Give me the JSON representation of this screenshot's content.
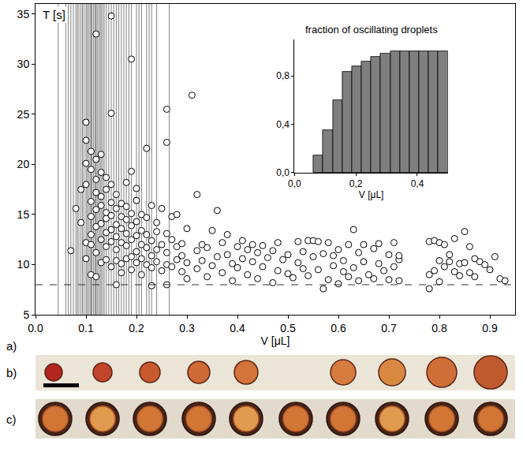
{
  "chart_data": [
    {
      "type": "scatter",
      "xlabel": "V [μL]",
      "ylabel": "T [s]",
      "x": [
        0.07,
        0.08,
        0.09,
        0.09,
        0.1,
        0.1,
        0.1,
        0.1,
        0.1,
        0.1,
        0.11,
        0.11,
        0.11,
        0.11,
        0.11,
        0.11,
        0.11,
        0.12,
        0.12,
        0.12,
        0.12,
        0.12,
        0.12,
        0.12,
        0.12,
        0.13,
        0.13,
        0.13,
        0.13,
        0.13,
        0.13,
        0.13,
        0.14,
        0.14,
        0.14,
        0.14,
        0.14,
        0.14,
        0.14,
        0.15,
        0.15,
        0.15,
        0.15,
        0.15,
        0.15,
        0.15,
        0.15,
        0.16,
        0.16,
        0.16,
        0.16,
        0.16,
        0.16,
        0.16,
        0.17,
        0.17,
        0.17,
        0.17,
        0.17,
        0.17,
        0.18,
        0.18,
        0.18,
        0.18,
        0.18,
        0.18,
        0.19,
        0.19,
        0.19,
        0.19,
        0.19,
        0.19,
        0.19,
        0.2,
        0.2,
        0.2,
        0.2,
        0.2,
        0.2,
        0.21,
        0.21,
        0.21,
        0.21,
        0.21,
        0.22,
        0.22,
        0.22,
        0.22,
        0.22,
        0.23,
        0.23,
        0.23,
        0.23,
        0.23,
        0.24,
        0.24,
        0.24,
        0.24,
        0.25,
        0.25,
        0.25,
        0.26,
        0.26,
        0.26,
        0.26,
        0.26,
        0.26,
        0.27,
        0.27,
        0.27,
        0.28,
        0.28,
        0.28,
        0.29,
        0.29,
        0.29,
        0.3,
        0.3,
        0.3,
        0.31,
        0.32,
        0.32,
        0.32,
        0.33,
        0.33,
        0.34,
        0.34,
        0.35,
        0.35,
        0.36,
        0.36,
        0.37,
        0.37,
        0.38,
        0.38,
        0.39,
        0.39,
        0.4,
        0.4,
        0.41,
        0.41,
        0.42,
        0.42,
        0.43,
        0.43,
        0.44,
        0.44,
        0.45,
        0.45,
        0.46,
        0.47,
        0.47,
        0.48,
        0.48,
        0.49,
        0.5,
        0.5,
        0.51,
        0.52,
        0.52,
        0.53,
        0.53,
        0.54,
        0.54,
        0.55,
        0.55,
        0.56,
        0.56,
        0.57,
        0.57,
        0.58,
        0.58,
        0.59,
        0.59,
        0.6,
        0.6,
        0.61,
        0.61,
        0.62,
        0.62,
        0.63,
        0.63,
        0.64,
        0.64,
        0.65,
        0.65,
        0.66,
        0.67,
        0.67,
        0.68,
        0.68,
        0.69,
        0.7,
        0.7,
        0.71,
        0.71,
        0.72,
        0.72,
        0.72,
        0.78,
        0.78,
        0.78,
        0.79,
        0.79,
        0.8,
        0.8,
        0.8,
        0.81,
        0.81,
        0.82,
        0.82,
        0.83,
        0.83,
        0.84,
        0.84,
        0.85,
        0.85,
        0.86,
        0.86,
        0.87,
        0.87,
        0.88,
        0.89,
        0.9,
        0.91,
        0.92,
        0.93
      ],
      "values": [
        11.4,
        15.6,
        14.2,
        17.5,
        12.2,
        18.0,
        20.1,
        22.4,
        24.2,
        10.6,
        13.0,
        14.8,
        16.3,
        19.5,
        21.3,
        12.0,
        9.0,
        33.0,
        8.8,
        11.2,
        13.8,
        15.5,
        17.2,
        18.5,
        20.5,
        10.2,
        12.5,
        14.1,
        15.9,
        16.8,
        19.2,
        21.0,
        10.5,
        11.8,
        13.2,
        14.6,
        15.2,
        17.5,
        18.7,
        34.8,
        25.1,
        9.8,
        12.3,
        13.5,
        14.9,
        16.2,
        18.0,
        8.0,
        10.4,
        11.5,
        12.8,
        14.0,
        15.6,
        17.0,
        10.1,
        12.2,
        13.6,
        14.8,
        16.1,
        9.2,
        10.6,
        11.9,
        13.1,
        14.5,
        15.8,
        18.2,
        30.5,
        19.3,
        9.5,
        10.8,
        12.5,
        13.9,
        15.1,
        17.6,
        10.2,
        11.3,
        12.9,
        14.3,
        16.4,
        9.0,
        10.6,
        12.0,
        13.4,
        15.0,
        21.6,
        10.0,
        11.7,
        13.0,
        14.7,
        7.9,
        9.7,
        10.9,
        12.4,
        15.9,
        13.3,
        10.3,
        11.5,
        14.2,
        9.4,
        12.0,
        15.6,
        25.5,
        22.2,
        10.0,
        11.2,
        13.1,
        8.0,
        14.8,
        9.8,
        12.5,
        10.5,
        11.8,
        15.0,
        9.3,
        10.9,
        12.1,
        10.2,
        13.6,
        8.6,
        26.9,
        17.0,
        11.4,
        9.6,
        12.0,
        10.4,
        8.8,
        11.7,
        13.4,
        9.9,
        15.4,
        10.8,
        12.2,
        9.2,
        11.0,
        13.0,
        10.1,
        8.4,
        11.8,
        9.7,
        12.4,
        10.6,
        11.5,
        9.0,
        10.3,
        12.0,
        11.2,
        8.6,
        11.9,
        9.8,
        10.7,
        8.2,
        11.4,
        9.4,
        12.2,
        10.5,
        9.1,
        11.0,
        8.7,
        10.2,
        12.3,
        9.6,
        11.3,
        12.4,
        8.9,
        10.8,
        12.4,
        12.3,
        9.5,
        7.6,
        11.1,
        8.5,
        12.2,
        9.9,
        10.9,
        8.1,
        11.5,
        9.3,
        10.4,
        12.0,
        8.8,
        13.5,
        9.7,
        11.2,
        8.4,
        10.3,
        12.0,
        9.0,
        11.6,
        8.6,
        10.1,
        12.1,
        9.4,
        8.5,
        11.0,
        12.2,
        9.8,
        8.4,
        10.5,
        10.9,
        12.3,
        9.0,
        7.6,
        12.4,
        9.4,
        12.2,
        10.4,
        8.3,
        12.0,
        9.8,
        10.3,
        11.0,
        9.3,
        12.6,
        10.1,
        8.9,
        13.3,
        10.2,
        11.8,
        9.2,
        10.6,
        8.8,
        10.3,
        10.0,
        9.5,
        10.8,
        8.6,
        8.4
      ],
      "color": "#ffffff",
      "marker": "circle",
      "vertical_lines": [
        0.045,
        0.06,
        0.065,
        0.07,
        0.075,
        0.08,
        0.083,
        0.086,
        0.09,
        0.093,
        0.096,
        0.1,
        0.102,
        0.105,
        0.108,
        0.11,
        0.112,
        0.115,
        0.118,
        0.12,
        0.122,
        0.125,
        0.128,
        0.13,
        0.133,
        0.136,
        0.14,
        0.145,
        0.15,
        0.155,
        0.16,
        0.165,
        0.17,
        0.175,
        0.18,
        0.185,
        0.19,
        0.2,
        0.205,
        0.21,
        0.22,
        0.225,
        0.23,
        0.24,
        0.265
      ],
      "reference_line": 8,
      "line_style": "dashed",
      "xlim": [
        0,
        0.95
      ],
      "xticks": [
        {
          "value": 0,
          "label": "0.0"
        },
        0.1,
        0.2,
        0.3,
        0.4,
        0.5,
        0.6,
        0.7,
        0.8,
        0.9
      ],
      "ylim": [
        5,
        36
      ],
      "yticks": [
        5,
        10,
        15,
        20,
        25,
        30,
        35
      ],
      "grid": false
    },
    {
      "type": "histogram",
      "title": "fraction of oscillating droplets",
      "xlabel": "V [μL]",
      "bins": [
        0.0625,
        0.09375,
        0.125,
        0.15625,
        0.1875,
        0.21875,
        0.25,
        0.28125,
        0.3125,
        0.34375,
        0.375,
        0.40625,
        0.4375,
        0.46875,
        0.5
      ],
      "values": [
        0.14,
        0.35,
        0.6,
        0.83,
        0.88,
        0.92,
        0.96,
        0.98,
        1.0,
        1.0,
        1.0,
        1.0,
        1.0,
        1.0
      ],
      "color": "#7f7f7f",
      "xlim": [
        0,
        0.5
      ],
      "xticks": [
        {
          "value": 0,
          "label": "0,0"
        },
        {
          "value": 0.2,
          "label": "0,2"
        },
        {
          "value": 0.4,
          "label": "0,4"
        }
      ],
      "ylim": [
        0,
        1.1
      ],
      "yticks": [
        {
          "value": 0,
          "label": "0,0"
        },
        {
          "value": 0.4,
          "label": "0,4"
        },
        {
          "value": 0.8,
          "label": "0,8"
        }
      ],
      "grid": false
    }
  ],
  "panels": [
    "a)",
    "b)",
    "c)"
  ]
}
